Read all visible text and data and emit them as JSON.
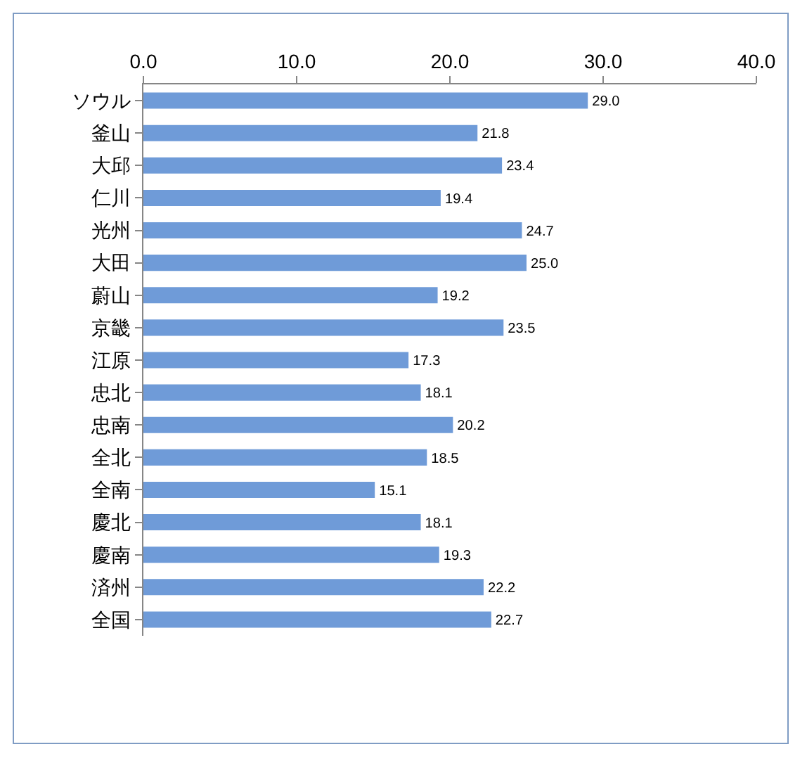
{
  "chart_data": {
    "type": "bar",
    "orientation": "horizontal",
    "categories": [
      "ソウル",
      "釜山",
      "大邱",
      "仁川",
      "光州",
      "大田",
      "蔚山",
      "京畿",
      "江原",
      "忠北",
      "忠南",
      "全北",
      "全南",
      "慶北",
      "慶南",
      "済州",
      "全国"
    ],
    "values": [
      29.0,
      21.8,
      23.4,
      19.4,
      24.7,
      25.0,
      19.2,
      23.5,
      17.3,
      18.1,
      20.2,
      18.5,
      15.1,
      18.1,
      19.3,
      22.2,
      22.7
    ],
    "value_labels": [
      "29.0",
      "21.8",
      "23.4",
      "19.4",
      "24.7",
      "25.0",
      "19.2",
      "23.5",
      "17.3",
      "18.1",
      "20.2",
      "18.5",
      "15.1",
      "18.1",
      "19.3",
      "22.2",
      "22.7"
    ],
    "color": "#6f9bd8",
    "xlim": [
      0,
      40
    ],
    "xticks": [
      {
        "value": 0,
        "label": "0.0"
      },
      {
        "value": 10,
        "label": "10.0"
      },
      {
        "value": 20,
        "label": "20.0"
      },
      {
        "value": 30,
        "label": "30.0"
      },
      {
        "value": 40,
        "label": "40.0"
      }
    ],
    "grid": false
  }
}
